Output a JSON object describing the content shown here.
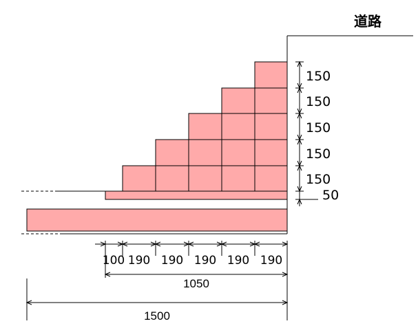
{
  "road_label": "道路",
  "colors": {
    "block_fill": "#ffaaaa",
    "line": "#000000",
    "background": "#ffffff"
  },
  "step_heights": [
    "150",
    "150",
    "150",
    "150",
    "150"
  ],
  "base_height": "50",
  "block_widths": [
    "100",
    "190",
    "190",
    "190",
    "190",
    "190"
  ],
  "width_1050": "1050",
  "width_1500": "1500"
}
